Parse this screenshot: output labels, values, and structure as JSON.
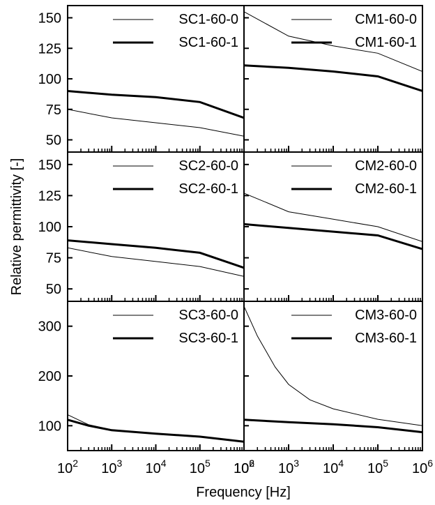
{
  "figure": {
    "xlabel": "Frequency [Hz]",
    "ylabel": "Relative permittivity [-]"
  },
  "chart_data": [
    {
      "type": "line",
      "position": "top-left",
      "x_scale": "log",
      "xlim": [
        100,
        1000000
      ],
      "ylim": [
        40,
        160
      ],
      "y_ticks": [
        50,
        75,
        100,
        125,
        150
      ],
      "series": [
        {
          "name": "SC1-60-0",
          "x": [
            100,
            1000,
            10000,
            100000,
            1000000
          ],
          "values": [
            75,
            68,
            64,
            60,
            53
          ]
        },
        {
          "name": "SC1-60-1",
          "x": [
            100,
            1000,
            10000,
            100000,
            1000000
          ],
          "values": [
            90,
            87,
            85,
            81,
            68
          ]
        }
      ]
    },
    {
      "type": "line",
      "position": "top-right",
      "x_scale": "log",
      "xlim": [
        100,
        1000000
      ],
      "ylim": [
        40,
        160
      ],
      "y_ticks": [
        50,
        75,
        100,
        125,
        150
      ],
      "series": [
        {
          "name": "CM1-60-0",
          "x": [
            100,
            1000,
            10000,
            100000,
            1000000
          ],
          "values": [
            155,
            135,
            127,
            121,
            106
          ]
        },
        {
          "name": "CM1-60-1",
          "x": [
            100,
            1000,
            10000,
            100000,
            1000000
          ],
          "values": [
            111,
            109,
            106,
            102,
            90
          ]
        }
      ]
    },
    {
      "type": "line",
      "position": "middle-left",
      "x_scale": "log",
      "xlim": [
        100,
        1000000
      ],
      "ylim": [
        40,
        160
      ],
      "y_ticks": [
        50,
        75,
        100,
        125,
        150
      ],
      "series": [
        {
          "name": "SC2-60-0",
          "x": [
            100,
            1000,
            10000,
            100000,
            1000000
          ],
          "values": [
            83,
            76,
            72,
            68,
            60
          ]
        },
        {
          "name": "SC2-60-1",
          "x": [
            100,
            1000,
            10000,
            100000,
            1000000
          ],
          "values": [
            89,
            86,
            83,
            79,
            67
          ]
        }
      ]
    },
    {
      "type": "line",
      "position": "middle-right",
      "x_scale": "log",
      "xlim": [
        100,
        1000000
      ],
      "ylim": [
        40,
        160
      ],
      "y_ticks": [
        50,
        75,
        100,
        125,
        150
      ],
      "series": [
        {
          "name": "CM2-60-0",
          "x": [
            100,
            1000,
            10000,
            100000,
            1000000
          ],
          "values": [
            127,
            112,
            106,
            100,
            88
          ]
        },
        {
          "name": "CM2-60-1",
          "x": [
            100,
            1000,
            10000,
            100000,
            1000000
          ],
          "values": [
            102,
            99,
            96,
            93,
            82
          ]
        }
      ]
    },
    {
      "type": "line",
      "position": "bottom-left",
      "x_scale": "log",
      "xlim": [
        100,
        1000000
      ],
      "ylim": [
        50,
        350
      ],
      "y_ticks": [
        100,
        200,
        300
      ],
      "series": [
        {
          "name": "SC3-60-0",
          "x": [
            100,
            300,
            1000,
            10000,
            100000,
            1000000
          ],
          "values": [
            122,
            102,
            92,
            84,
            78,
            68
          ]
        },
        {
          "name": "SC3-60-1",
          "x": [
            100,
            300,
            1000,
            10000,
            100000,
            1000000
          ],
          "values": [
            112,
            100,
            91,
            84,
            78,
            68
          ]
        }
      ]
    },
    {
      "type": "line",
      "position": "bottom-right",
      "x_scale": "log",
      "xlim": [
        100,
        1000000
      ],
      "ylim": [
        50,
        350
      ],
      "y_ticks": [
        100,
        200,
        300
      ],
      "series": [
        {
          "name": "CM3-60-0",
          "x": [
            100,
            200,
            500,
            1000,
            3000,
            10000,
            100000,
            1000000
          ],
          "values": [
            340,
            280,
            218,
            183,
            152,
            134,
            113,
            100
          ]
        },
        {
          "name": "CM3-60-1",
          "x": [
            100,
            1000,
            10000,
            100000,
            1000000
          ],
          "values": [
            112,
            107,
            103,
            97,
            87
          ]
        }
      ]
    }
  ]
}
